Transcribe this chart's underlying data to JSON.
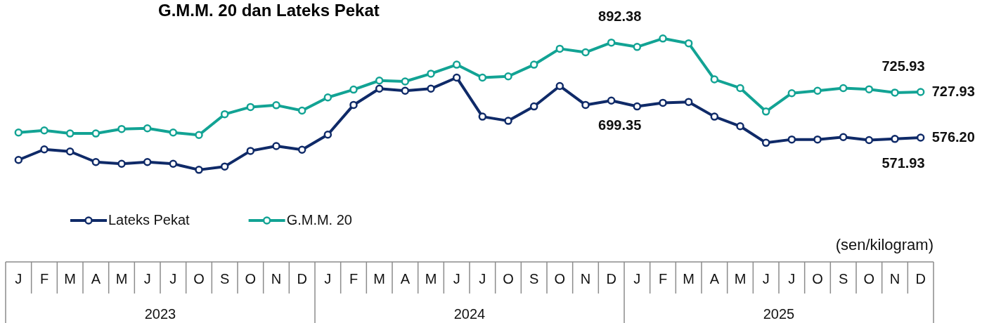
{
  "chart_data": {
    "type": "line",
    "title": "G.M.M. 20 dan Lateks Pekat",
    "categories": [
      "J",
      "F",
      "M",
      "A",
      "M",
      "J",
      "J",
      "O",
      "S",
      "O",
      "N",
      "D",
      "J",
      "F",
      "M",
      "A",
      "M",
      "J",
      "J",
      "O",
      "S",
      "O",
      "N",
      "D",
      "J",
      "F",
      "M",
      "A",
      "M",
      "J",
      "J",
      "O",
      "S",
      "O",
      "N",
      "D"
    ],
    "annotations": [
      "(sen/kilogram)",
      "2023",
      "2024",
      "2025"
    ],
    "tick_labels": "x",
    "legend": "bottom",
    "marker": "circle",
    "line_style": "solid",
    "series": [
      {
        "name": "Lateks Pekat",
        "color": "#0f2a68",
        "values": [
          502,
          537,
          530,
          495,
          489,
          495,
          489,
          469,
          480,
          532,
          548,
          536,
          586,
          685,
          739,
          732,
          739,
          776,
          646,
          632,
          680,
          748,
          685,
          699.35,
          680,
          692,
          695,
          646,
          614,
          559,
          570,
          570,
          578,
          568,
          571.93,
          576.2
        ],
        "value_labels": [
          null,
          null,
          null,
          null,
          null,
          null,
          null,
          null,
          null,
          null,
          null,
          null,
          null,
          null,
          null,
          null,
          null,
          null,
          null,
          null,
          null,
          null,
          null,
          "699.35",
          null,
          null,
          null,
          null,
          null,
          null,
          null,
          null,
          null,
          null,
          "571.93",
          "576.20"
        ]
      },
      {
        "name": "G.M.M. 20",
        "color": "#12a394",
        "values": [
          593,
          600,
          590,
          590,
          605,
          607,
          593,
          585,
          654,
          678,
          684,
          666,
          710,
          736,
          766,
          763,
          789,
          819,
          776,
          780,
          819,
          872,
          860,
          892.38,
          878,
          906,
          890,
          770,
          741,
          663,
          724,
          732,
          741,
          737,
          725.93,
          727.93
        ],
        "value_labels": [
          null,
          null,
          null,
          null,
          null,
          null,
          null,
          null,
          null,
          null,
          null,
          null,
          null,
          null,
          null,
          null,
          null,
          null,
          null,
          null,
          null,
          null,
          null,
          "892.38",
          null,
          null,
          null,
          null,
          null,
          null,
          null,
          null,
          null,
          null,
          "725.93",
          "727.93"
        ]
      }
    ]
  }
}
